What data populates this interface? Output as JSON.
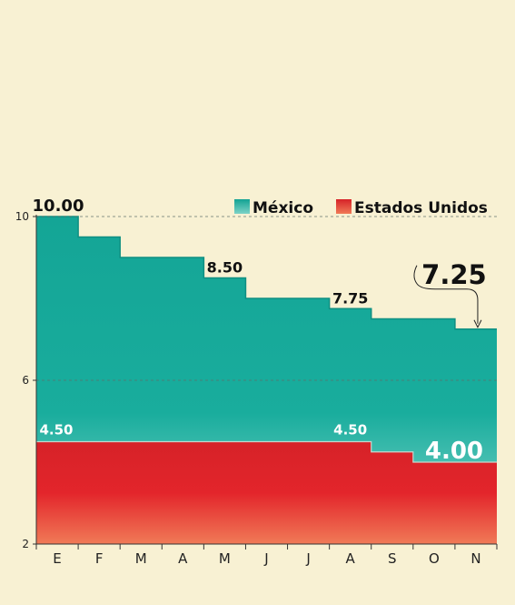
{
  "chart_data": {
    "type": "area",
    "step": true,
    "categories": [
      "E",
      "F",
      "M",
      "A",
      "M",
      "J",
      "J",
      "A",
      "S",
      "O",
      "N"
    ],
    "ylim": [
      2,
      10
    ],
    "yticks": [
      2,
      6,
      10
    ],
    "grid": {
      "dashed_lines_at": [
        6,
        10
      ]
    },
    "legend_position": "top-right",
    "series": [
      {
        "name": "México",
        "color": "#1ea898",
        "values": [
          10.0,
          9.5,
          9.0,
          9.0,
          8.5,
          8.0,
          8.0,
          7.75,
          7.5,
          7.5,
          7.25
        ]
      },
      {
        "name": "Estados Unidos",
        "color": "#e0252a",
        "values": [
          4.5,
          4.5,
          4.5,
          4.5,
          4.5,
          4.5,
          4.5,
          4.5,
          4.25,
          4.0,
          4.0
        ]
      }
    ],
    "annotations": [
      {
        "label": "10.00",
        "series": 0,
        "index": 0
      },
      {
        "label": "8.50",
        "series": 0,
        "index": 4
      },
      {
        "label": "7.75",
        "series": 0,
        "index": 7
      },
      {
        "label": "7.25",
        "series": 0,
        "index": 10
      },
      {
        "label": "4.50",
        "series": 1,
        "index": 0
      },
      {
        "label": "4.50",
        "series": 1,
        "index": 7
      },
      {
        "label": "4.00",
        "series": 1,
        "index": 10
      }
    ]
  }
}
